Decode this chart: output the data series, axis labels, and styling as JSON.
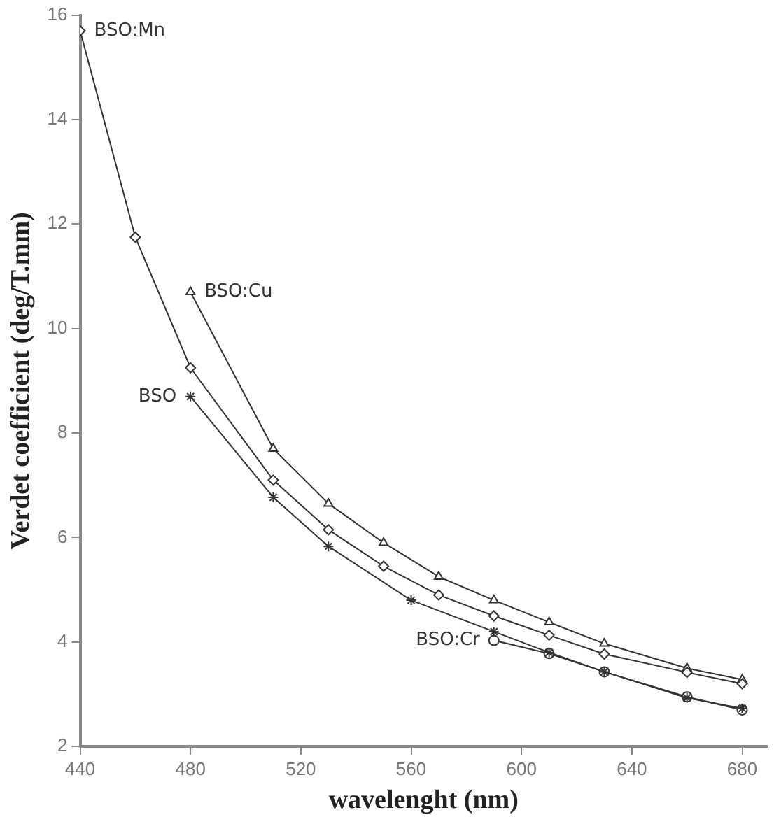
{
  "chart_data": {
    "type": "line",
    "xlabel": "wavelenght (nm)",
    "ylabel": "Verdet coefficient (deg/T.mm)",
    "xlim": [
      440,
      689
    ],
    "xticks": [
      440,
      480,
      520,
      560,
      600,
      640,
      680
    ],
    "ylim": [
      2,
      16
    ],
    "yticks": [
      2,
      4,
      6,
      8,
      10,
      12,
      14,
      16
    ],
    "grid": false,
    "legend": false,
    "series": [
      {
        "name": "BSO:Mn",
        "color": "#333333",
        "marker": "diamond",
        "x": [
          440,
          460,
          480,
          510,
          530,
          550,
          570,
          590,
          610,
          630,
          660,
          680
        ],
        "values": [
          15.7,
          11.75,
          9.25,
          7.1,
          6.15,
          5.45,
          4.9,
          4.5,
          4.13,
          3.77,
          3.42,
          3.2
        ]
      },
      {
        "name": "BSO:Cu",
        "color": "#333333",
        "marker": "triangle",
        "x": [
          480,
          510,
          530,
          550,
          570,
          590,
          610,
          630,
          660,
          680
        ],
        "values": [
          10.7,
          7.7,
          6.65,
          5.9,
          5.25,
          4.8,
          4.38,
          3.97,
          3.5,
          3.28
        ]
      },
      {
        "name": "BSO",
        "color": "#333333",
        "marker": "cross",
        "x": [
          480,
          510,
          530,
          560,
          590,
          610,
          630,
          660,
          680
        ],
        "values": [
          8.7,
          6.77,
          5.83,
          4.8,
          4.2,
          3.8,
          3.43,
          2.93,
          2.73
        ]
      },
      {
        "name": "BSO:Cr",
        "color": "#333333",
        "marker": "circle",
        "x": [
          590,
          610,
          630,
          660,
          680
        ],
        "values": [
          4.03,
          3.78,
          3.43,
          2.95,
          2.7
        ]
      }
    ]
  }
}
